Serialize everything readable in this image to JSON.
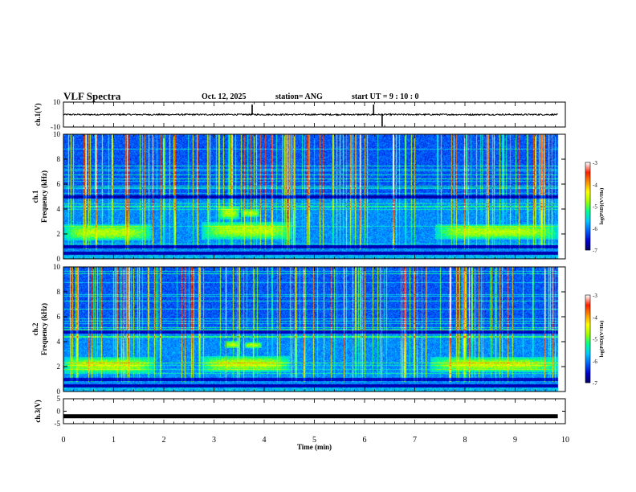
{
  "header": {
    "title": "VLF Spectra",
    "date": "Oct. 12, 2025",
    "station": "station= ANG",
    "start": "start  UT =   9 : 10 : 0"
  },
  "chart_data": [
    {
      "type": "line",
      "panel": "ch1-voltage",
      "ylabel": "ch.1(V)",
      "ylim": [
        -10,
        10
      ],
      "yticks": [
        "10",
        "-10"
      ],
      "xlim": [
        0,
        10
      ],
      "baseline": 0,
      "noise_amplitude": 1,
      "spikes": [
        {
          "x": 3.76,
          "y": 8
        },
        {
          "x": 6.18,
          "y": 8
        },
        {
          "x": 6.35,
          "y": -9.5
        }
      ],
      "color": "#000000"
    },
    {
      "type": "heatmap",
      "panel": "ch1-spectrogram",
      "ylabel": "ch.1  Frequency (kHz)",
      "ylim": [
        0,
        10
      ],
      "yticks": [
        "0",
        "2",
        "4",
        "6",
        "8",
        "10"
      ],
      "xlim": [
        0,
        10
      ],
      "hiss_bands": [
        {
          "t0": 0.0,
          "t1": 1.75,
          "f0": 1.5,
          "f1": 2.8
        },
        {
          "t0": 2.75,
          "t1": 4.55,
          "f0": 1.6,
          "f1": 3.0
        },
        {
          "t0": 3.1,
          "t1": 3.5,
          "f0": 3.2,
          "f1": 4.2
        },
        {
          "t0": 3.55,
          "t1": 3.9,
          "f0": 3.4,
          "f1": 4.0
        },
        {
          "t0": 7.4,
          "t1": 9.85,
          "f0": 1.6,
          "f1": 2.8
        }
      ],
      "dark_bands_khz": [
        0.5,
        1.0,
        5.0
      ],
      "colorbar": {
        "label": "log(PSD)(V²/Hz)",
        "ticks": [
          "-3",
          "-4",
          "-5",
          "-6",
          "-7"
        ],
        "range": [
          -7,
          -3
        ]
      }
    },
    {
      "type": "heatmap",
      "panel": "ch2-spectrogram",
      "ylabel": "ch.2  Frequency (kHz)",
      "ylim": [
        0,
        10
      ],
      "yticks": [
        "0",
        "2",
        "4",
        "6",
        "8",
        "10"
      ],
      "xlim": [
        0,
        10
      ],
      "hiss_bands": [
        {
          "t0": 0.0,
          "t1": 1.8,
          "f0": 1.5,
          "f1": 2.8
        },
        {
          "t0": 2.75,
          "t1": 4.5,
          "f0": 1.6,
          "f1": 2.9
        },
        {
          "t0": 3.2,
          "t1": 3.5,
          "f0": 3.5,
          "f1": 4.1
        },
        {
          "t0": 3.6,
          "t1": 3.95,
          "f0": 3.5,
          "f1": 4.0
        },
        {
          "t0": 7.3,
          "t1": 9.85,
          "f0": 1.6,
          "f1": 2.8
        }
      ],
      "dark_bands_khz": [
        0.5,
        1.0,
        4.8
      ],
      "colorbar": {
        "label": "log(PSD)(V²/Hz)",
        "ticks": [
          "-3",
          "-4",
          "-5",
          "-6",
          "-7"
        ],
        "range": [
          -7,
          -3
        ]
      }
    },
    {
      "type": "line",
      "panel": "ch3-voltage",
      "ylabel": "ch.3(V)",
      "ylim": [
        -5,
        5
      ],
      "yticks": [
        "5",
        "0",
        "-5"
      ],
      "xlim": [
        0,
        10
      ],
      "baseline": -2,
      "color": "#000000"
    }
  ],
  "xaxis": {
    "label": "Time (min)",
    "ticks": [
      "0",
      "1",
      "2",
      "3",
      "4",
      "5",
      "6",
      "7",
      "8",
      "9",
      "10"
    ],
    "data_end_min": 9.85
  },
  "colors": {
    "colormap": [
      "#000060",
      "#0000d0",
      "#0060ff",
      "#00c8ff",
      "#00ff90",
      "#a0ff00",
      "#ffff00",
      "#ff9000",
      "#ff2000",
      "#ffffff"
    ]
  }
}
